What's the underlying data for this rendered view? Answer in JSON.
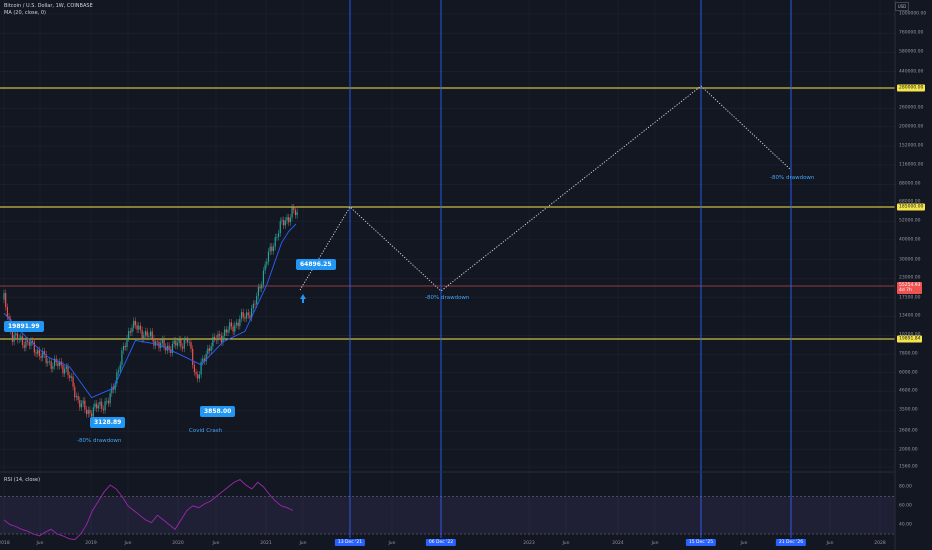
{
  "legend": {
    "title": "Bitcoin / U.S. Dollar, 1W, COINBASE",
    "indicator": "MA (20, close, 0)"
  },
  "scale_button": "USD",
  "price_axis": [
    "1000000.00",
    "760000.00",
    "580000.00",
    "440000.00",
    "340000.00",
    "260000.00",
    "200000.00",
    "152000.00",
    "116000.00",
    "88000.00",
    "68000.00",
    "52000.00",
    "40000.00",
    "30000.00",
    "23000.00",
    "17500.00",
    "13400.00",
    "10200.00",
    "7800.00",
    "6000.00",
    "4600.00",
    "3500.00",
    "2600.00",
    "2000.00",
    "1560.00"
  ],
  "rsi_axis": [
    "80.00",
    "60.00",
    "40.00"
  ],
  "price_tags": {
    "top_level": "280000.00",
    "mid_level": "185000.00",
    "current": "55254.93",
    "current_sub": "4d 7h",
    "low_level": "19891.84"
  },
  "time_axis": [
    "2018",
    "Jun",
    "2019",
    "Jun",
    "2020",
    "Jun",
    "2021",
    "Jun",
    "Jun",
    "2023",
    "Jun",
    "2024",
    "Jun",
    "2025",
    "Jun",
    "2027",
    "Jun",
    "2028"
  ],
  "date_tags": [
    "13 Dec '21",
    "06 Dec '22",
    "15 Dec '25",
    "21 Dec '26"
  ],
  "callouts": {
    "ath_2017": "19891.99",
    "low_2018": "3128.89",
    "covid_low": "3858.00",
    "ath_2021": "64896.25"
  },
  "annotations": {
    "drawdown_2018": "-80% drawdown",
    "covid": "Covid Crash",
    "drawdown_2022": "-80% drawdown",
    "drawdown_2026": "-80% drawdown"
  },
  "rsi_legend": "RSI (14, close)",
  "colors": {
    "background": "#131722",
    "grid": "#1f2330",
    "candle_up": "#26a69a",
    "candle_down": "#ef5350",
    "ma": "#2962ff",
    "level_line": "#f5e54b",
    "resistance_red": "#ef5350",
    "vertical_marker": "#2962ff",
    "rsi": "#9c27b0",
    "projection": "#e0e0e0"
  },
  "chart_data": {
    "type": "line",
    "title": "Bitcoin / U.S. Dollar, 1W, COINBASE",
    "y_scale": "log",
    "series": [
      {
        "name": "MA (20, close, 0)",
        "points": [
          [
            "2018-01",
            14000
          ],
          [
            "2018-04",
            10000
          ],
          [
            "2018-07",
            7500
          ],
          [
            "2018-10",
            6500
          ],
          [
            "2019-01",
            4200
          ],
          [
            "2019-04",
            4800
          ],
          [
            "2019-07",
            9500
          ],
          [
            "2019-10",
            9000
          ],
          [
            "2020-01",
            7800
          ],
          [
            "2020-04",
            6700
          ],
          [
            "2020-07",
            9300
          ],
          [
            "2020-10",
            10800
          ],
          [
            "2021-01",
            21000
          ],
          [
            "2021-03",
            38000
          ],
          [
            "2021-04",
            45000
          ],
          [
            "2021-05",
            50000
          ]
        ]
      }
    ],
    "horizontal_levels": [
      280000,
      185000,
      55254.93,
      19891.84
    ],
    "labeled_prices": [
      19891.99,
      3128.89,
      3858.0,
      64896.25
    ],
    "projection_path": [
      [
        "2021-05",
        55000
      ],
      [
        "2021-12-13",
        185000
      ],
      [
        "2022-12-06",
        45000
      ],
      [
        "2025-12-15",
        280000
      ],
      [
        "2026-12-21",
        56000
      ]
    ]
  }
}
